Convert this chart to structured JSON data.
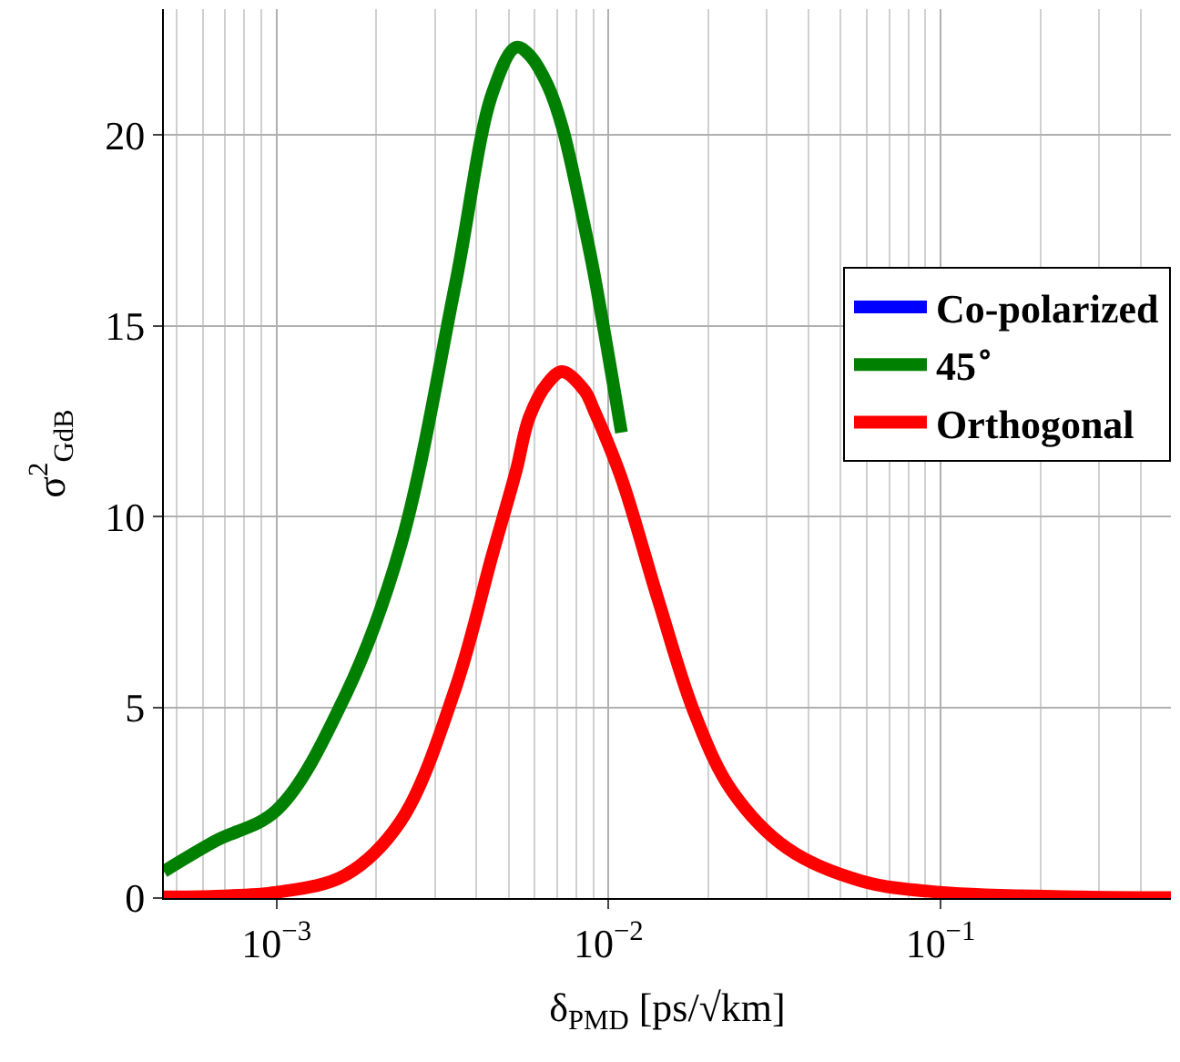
{
  "chart_data": {
    "type": "line",
    "xlabel": "δ$_{PMD}$ [ps/√km]",
    "ylabel": "σ$^{2}$$_{GdB}$",
    "x": [
      0.000458,
      0.000656,
      0.001,
      0.00161,
      0.00236,
      0.00346,
      0.00447,
      0.00527,
      0.00577,
      0.00656,
      0.00726,
      0.00847,
      0.00903,
      0.01094,
      0.01413,
      0.01824,
      0.02357,
      0.03459,
      0.0577,
      0.1,
      0.268,
      0.494
    ],
    "series": [
      {
        "name": "Co-polarized",
        "color": "#0000ff",
        "values": [
          null,
          null,
          null,
          null,
          null,
          null,
          null,
          null,
          null,
          null,
          null,
          null,
          null,
          null,
          null,
          null,
          null,
          null,
          null,
          null,
          null,
          null
        ]
      },
      {
        "name": "45$^{∘}$",
        "color": "#008000",
        "values": [
          0.7,
          1.5,
          2.3,
          5.3,
          9.2,
          16.1,
          21.1,
          22.3,
          22.1,
          21.3,
          20.2,
          17.6,
          16.4,
          12.2,
          null,
          null,
          null,
          null,
          null,
          null,
          null,
          null
        ]
      },
      {
        "name": "Orthogonal",
        "color": "#ff0000",
        "values": [
          0.03,
          0.05,
          0.15,
          0.6,
          2.0,
          5.5,
          9.0,
          11.2,
          12.6,
          13.5,
          13.8,
          13.3,
          12.8,
          11.0,
          7.8,
          4.8,
          2.8,
          1.3,
          0.45,
          0.15,
          0.03,
          0.01
        ]
      }
    ],
    "xlim": [
      0.000458,
      0.494
    ],
    "xticks": [
      {
        "value": 0.001,
        "label": "10$^{−3}$"
      },
      {
        "value": 0.01,
        "label": "10$^{−2}$"
      },
      {
        "value": 0.1,
        "label": "10$^{−1}$"
      }
    ],
    "ylim": [
      0,
      23.3
    ],
    "yticks": [
      0,
      5,
      10,
      15,
      20
    ],
    "log": "x",
    "grid": true,
    "legend": "right",
    "marker": "none",
    "line_style": "solid"
  }
}
